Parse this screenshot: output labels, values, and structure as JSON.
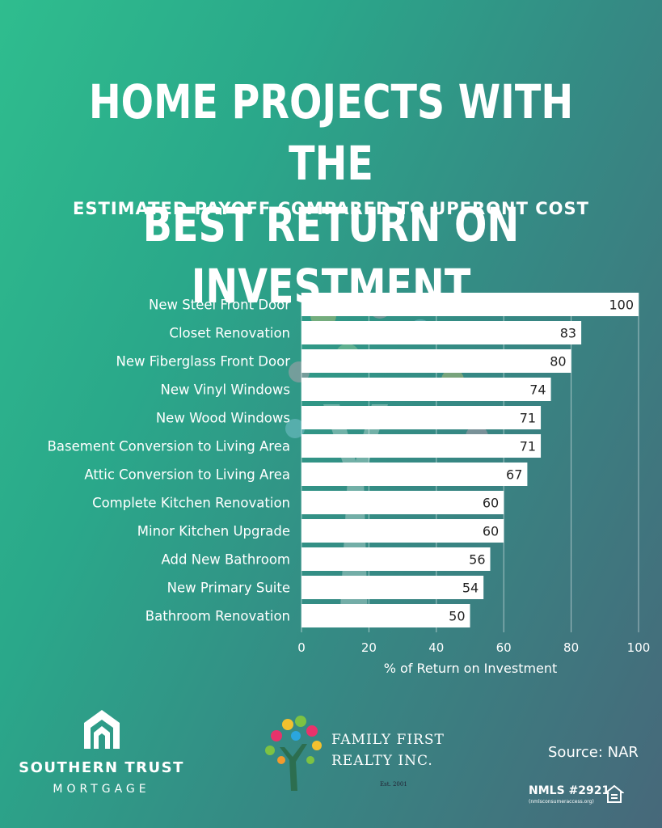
{
  "title_line1": "HOME PROJECTS WITH THE",
  "title_line2": "BEST RETURN ON INVESTMENT",
  "subtitle": "ESTIMATED PAYOFF COMPARED TO UPFRONT COST",
  "chart_data": {
    "type": "bar",
    "orientation": "horizontal",
    "categories": [
      "New Steel Front Door",
      "Closet Renovation",
      "New Fiberglass Front Door",
      "New Vinyl Windows",
      "New Wood Windows",
      "Basement Conversion to Living Area",
      "Attic Conversion to Living Area",
      "Complete Kitchen Renovation",
      "Minor Kitchen Upgrade",
      "Add New Bathroom",
      "New Primary Suite",
      "Bathroom Renovation"
    ],
    "values": [
      100,
      83,
      80,
      74,
      71,
      71,
      67,
      60,
      60,
      56,
      54,
      50
    ],
    "xlabel": "% of Return on Investment",
    "xlim": [
      0,
      100
    ],
    "xticks": [
      "0",
      "20",
      "40",
      "60",
      "80",
      "100"
    ],
    "grid": true,
    "bar_color": "#ffffff"
  },
  "logos": {
    "left_name": "SOUTHERN TRUST",
    "left_sub": "MORTGAGE",
    "mid_line1": "FAMILY  FIRST",
    "mid_line2": "REALTY  INC.",
    "mid_est": "Est. 2001"
  },
  "source": "Source: NAR",
  "nmls": "NMLS #2921",
  "nmls_sub": "(nmlsconsumeraccess.org)"
}
